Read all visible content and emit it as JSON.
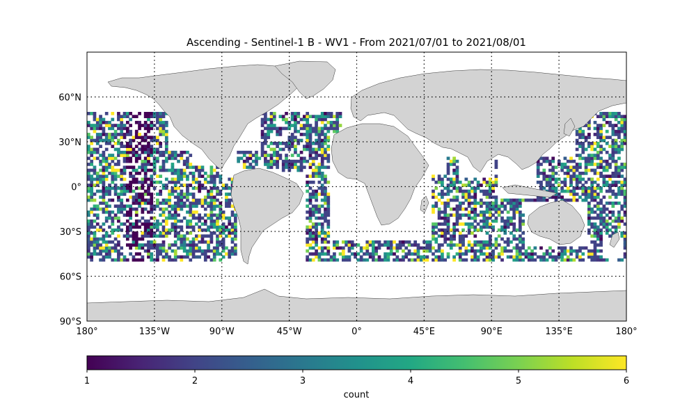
{
  "figure": {
    "title": "Ascending - Sentinel-1 B - WV1 - From 2021/07/01 to 2021/08/01"
  },
  "chart_data": {
    "type": "heatmap",
    "projection": "PlateCarree",
    "title": "Ascending - Sentinel-1 B - WV1 - From 2021/07/01 to 2021/08/01",
    "xlim": [
      -180,
      180
    ],
    "ylim": [
      -90,
      90
    ],
    "x_ticks": [
      {
        "value": -180,
        "label": "180°"
      },
      {
        "value": -135,
        "label": "135°W"
      },
      {
        "value": -90,
        "label": "90°W"
      },
      {
        "value": -45,
        "label": "45°W"
      },
      {
        "value": 0,
        "label": "0°"
      },
      {
        "value": 45,
        "label": "45°E"
      },
      {
        "value": 90,
        "label": "90°E"
      },
      {
        "value": 135,
        "label": "135°E"
      },
      {
        "value": 180,
        "label": "180°"
      }
    ],
    "y_ticks": [
      {
        "value": 60,
        "label": "60°N"
      },
      {
        "value": 30,
        "label": "30°N"
      },
      {
        "value": 0,
        "label": "0°"
      },
      {
        "value": -30,
        "label": "30°S"
      },
      {
        "value": -60,
        "label": "60°S"
      },
      {
        "value": -90,
        "label": "90°S"
      }
    ],
    "gridlines": "dotted",
    "land_color": "#d3d3d3",
    "cell_size_deg": 2,
    "data_lat_range": [
      -50,
      50
    ],
    "colormap": "viridis",
    "colorbar": {
      "label": "count",
      "min": 1,
      "max": 6,
      "ticks": [
        "1",
        "2",
        "3",
        "4",
        "5",
        "6"
      ],
      "orientation": "horizontal",
      "placement": "bottom"
    },
    "value_range": [
      1,
      6
    ]
  }
}
